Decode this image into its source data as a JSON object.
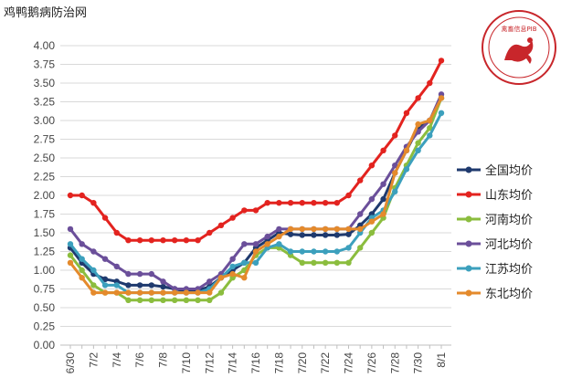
{
  "watermark": {
    "text": "鸡鸭鹅病防治网"
  },
  "logo": {
    "text": "禽畜信息PIB"
  },
  "chart_data": {
    "type": "line",
    "categories": [
      "6/30",
      "7/1",
      "7/2",
      "7/3",
      "7/4",
      "7/5",
      "7/6",
      "7/7",
      "7/8",
      "7/9",
      "7/10",
      "7/11",
      "7/12",
      "7/13",
      "7/14",
      "7/15",
      "7/16",
      "7/17",
      "7/18",
      "7/19",
      "7/20",
      "7/21",
      "7/22",
      "7/23",
      "7/24",
      "7/25",
      "7/26",
      "7/27",
      "7/28",
      "7/29",
      "7/30",
      "7/31",
      "8/1"
    ],
    "x_tick_labels": [
      "6/30",
      "7/2",
      "7/4",
      "7/6",
      "7/8",
      "7/10",
      "7/12",
      "7/14",
      "7/16",
      "7/18",
      "7/20",
      "7/22",
      "7/24",
      "7/26",
      "7/28",
      "7/30",
      "8/1"
    ],
    "ylim": [
      0,
      4
    ],
    "y_ticks": [
      "0.00",
      "0.25",
      "0.50",
      "0.75",
      "1.00",
      "1.25",
      "1.50",
      "1.75",
      "2.00",
      "2.25",
      "2.50",
      "2.75",
      "3.00",
      "3.25",
      "3.50",
      "3.75",
      "4.00"
    ],
    "grid": "horizontal",
    "legend_position": "right",
    "series": [
      {
        "name": "全国均价",
        "color": "#1f3a6e",
        "values": [
          1.3,
          1.1,
          0.95,
          0.88,
          0.85,
          0.8,
          0.8,
          0.8,
          0.78,
          0.75,
          0.72,
          0.73,
          0.78,
          0.9,
          1.0,
          1.1,
          1.3,
          1.4,
          1.5,
          1.48,
          1.47,
          1.47,
          1.47,
          1.47,
          1.48,
          1.6,
          1.75,
          1.95,
          2.3,
          2.6,
          2.9,
          3.0,
          3.3
        ]
      },
      {
        "name": "山东均价",
        "color": "#e3231f",
        "values": [
          2.0,
          2.0,
          1.9,
          1.7,
          1.5,
          1.4,
          1.4,
          1.4,
          1.4,
          1.4,
          1.4,
          1.4,
          1.5,
          1.6,
          1.7,
          1.8,
          1.8,
          1.9,
          1.9,
          1.9,
          1.9,
          1.9,
          1.9,
          1.9,
          2.0,
          2.2,
          2.4,
          2.6,
          2.8,
          3.1,
          3.3,
          3.5,
          3.8
        ]
      },
      {
        "name": "河南均价",
        "color": "#8bbd3e",
        "values": [
          1.2,
          1.0,
          0.8,
          0.7,
          0.7,
          0.6,
          0.6,
          0.6,
          0.6,
          0.6,
          0.6,
          0.6,
          0.6,
          0.7,
          0.9,
          1.0,
          1.2,
          1.3,
          1.3,
          1.2,
          1.1,
          1.1,
          1.1,
          1.1,
          1.1,
          1.3,
          1.5,
          1.7,
          2.1,
          2.4,
          2.7,
          2.9,
          3.3
        ]
      },
      {
        "name": "河北均价",
        "color": "#6b4f9a",
        "values": [
          1.55,
          1.35,
          1.25,
          1.15,
          1.05,
          0.95,
          0.95,
          0.95,
          0.85,
          0.75,
          0.75,
          0.75,
          0.85,
          0.95,
          1.15,
          1.35,
          1.35,
          1.45,
          1.55,
          1.55,
          1.55,
          1.55,
          1.55,
          1.55,
          1.55,
          1.75,
          1.95,
          2.15,
          2.4,
          2.65,
          2.85,
          3.0,
          3.35
        ]
      },
      {
        "name": "江苏均价",
        "color": "#3ca0bd",
        "values": [
          1.35,
          1.15,
          1.0,
          0.8,
          0.8,
          0.7,
          0.7,
          0.7,
          0.7,
          0.7,
          0.7,
          0.7,
          0.75,
          0.9,
          1.05,
          1.1,
          1.1,
          1.3,
          1.35,
          1.25,
          1.25,
          1.25,
          1.25,
          1.25,
          1.3,
          1.5,
          1.7,
          1.8,
          2.05,
          2.35,
          2.6,
          2.8,
          3.1
        ]
      },
      {
        "name": "东北均价",
        "color": "#e48a2c",
        "values": [
          1.1,
          0.9,
          0.7,
          0.7,
          0.7,
          0.7,
          0.7,
          0.7,
          0.7,
          0.7,
          0.7,
          0.7,
          0.7,
          0.9,
          0.95,
          0.9,
          1.25,
          1.35,
          1.45,
          1.55,
          1.55,
          1.55,
          1.55,
          1.55,
          1.55,
          1.55,
          1.65,
          1.75,
          2.3,
          2.6,
          2.95,
          3.0,
          3.3
        ]
      }
    ]
  }
}
